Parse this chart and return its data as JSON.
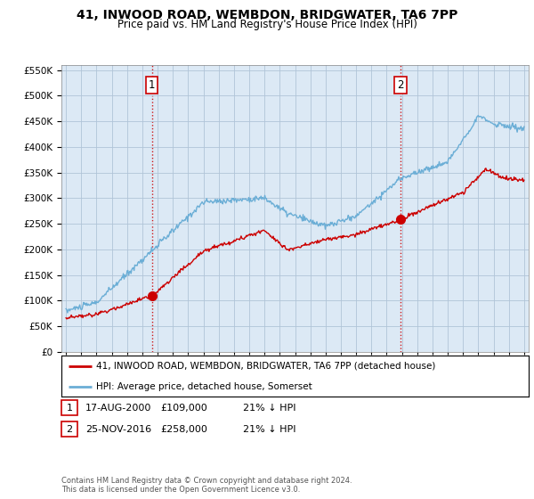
{
  "title_line1": "41, INWOOD ROAD, WEMBDON, BRIDGWATER, TA6 7PP",
  "title_line2": "Price paid vs. HM Land Registry's House Price Index (HPI)",
  "background_color": "#ffffff",
  "plot_background_color": "#dce9f5",
  "hpi_color": "#6baed6",
  "price_color": "#cc0000",
  "marker_color": "#cc0000",
  "sale1_t": 2000.63,
  "sale1_p": 109000,
  "sale2_t": 2016.9,
  "sale2_p": 258000,
  "ylim": [
    0,
    560000
  ],
  "yticks": [
    0,
    50000,
    100000,
    150000,
    200000,
    250000,
    300000,
    350000,
    400000,
    450000,
    500000,
    550000
  ],
  "legend_house_label": "41, INWOOD ROAD, WEMBDON, BRIDGWATER, TA6 7PP (detached house)",
  "legend_hpi_label": "HPI: Average price, detached house, Somerset",
  "table_row1": [
    "1",
    "17-AUG-2000",
    "£109,000",
    "21% ↓ HPI"
  ],
  "table_row2": [
    "2",
    "25-NOV-2016",
    "£258,000",
    "21% ↓ HPI"
  ],
  "footer": "Contains HM Land Registry data © Crown copyright and database right 2024.\nThis data is licensed under the Open Government Licence v3.0."
}
